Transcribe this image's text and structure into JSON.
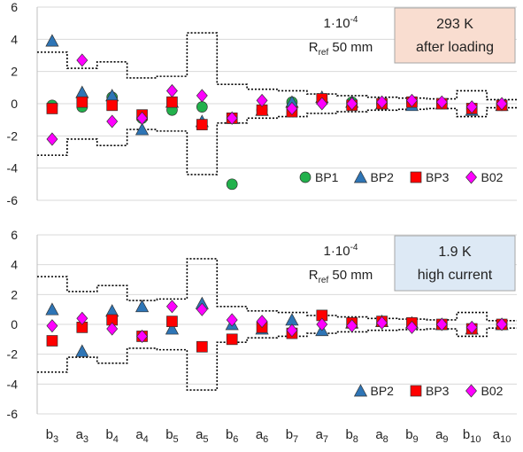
{
  "chart_data": [
    {
      "type": "scatter",
      "note_line1": "1·10",
      "note_exp": "-4",
      "note_line2_prefix": "R",
      "note_line2_sub": "ref",
      "note_line2_suffix": " 50 mm",
      "label_line1": "293 K",
      "label_line2": "after loading",
      "label_color": "#f9ddd0",
      "ylim": [
        -6,
        6
      ],
      "yticks": [
        6,
        4,
        2,
        0,
        -2,
        -4,
        -6
      ],
      "grid": true,
      "legend_placement": "bottom-right",
      "categories": [
        "b3",
        "a3",
        "b4",
        "a4",
        "b5",
        "a5",
        "b6",
        "a6",
        "b7",
        "a7",
        "b8",
        "a8",
        "b9",
        "a9",
        "b10",
        "a10"
      ],
      "series": [
        {
          "name": "BP1",
          "marker": "circle",
          "color": "#22b14c",
          "values": [
            -0.1,
            -0.2,
            0.4,
            -0.9,
            -0.4,
            -0.2,
            -5.0,
            -0.4,
            0.1,
            0.3,
            0.1,
            0.0,
            0.1,
            0.0,
            -0.3,
            -0.1
          ]
        },
        {
          "name": "BP2",
          "marker": "triangle",
          "color": "#2e75b6",
          "values": [
            3.9,
            0.7,
            0.5,
            -1.6,
            0.1,
            -1.1,
            -0.9,
            -0.4,
            0.1,
            0.4,
            0.1,
            0.0,
            -0.1,
            0.0,
            -0.4,
            -0.1
          ]
        },
        {
          "name": "BP3",
          "marker": "square",
          "color": "#ff0000",
          "values": [
            -0.3,
            0.1,
            -0.1,
            -0.7,
            0.1,
            -1.3,
            -0.9,
            -0.4,
            -0.5,
            0.3,
            -0.1,
            0.0,
            0.1,
            0.0,
            -0.3,
            -0.1
          ]
        },
        {
          "name": "B02",
          "marker": "diamond",
          "color": "#ff00ff",
          "values": [
            -2.2,
            2.7,
            -1.1,
            -0.9,
            0.8,
            0.5,
            -0.9,
            0.2,
            -0.3,
            0.0,
            0.0,
            0.1,
            0.2,
            0.1,
            -0.2,
            0.0
          ]
        }
      ],
      "envelope_upper": [
        3.2,
        2.2,
        2.6,
        1.6,
        1.7,
        4.4,
        1.2,
        0.9,
        0.8,
        0.6,
        0.5,
        0.4,
        0.35,
        0.3,
        0.8,
        0.25
      ],
      "envelope_lower": [
        -3.2,
        -2.2,
        -2.6,
        -1.6,
        -1.7,
        -4.4,
        -1.2,
        -0.9,
        -0.8,
        -0.6,
        -0.5,
        -0.4,
        -0.35,
        -0.3,
        -0.8,
        -0.25
      ]
    },
    {
      "type": "scatter",
      "note_line1": "1·10",
      "note_exp": "-4",
      "note_line2_prefix": "R",
      "note_line2_sub": "ref",
      "note_line2_suffix": " 50 mm",
      "label_line1": "1.9 K",
      "label_line2": "high current",
      "label_color": "#dde9f5",
      "ylim": [
        -6,
        6
      ],
      "yticks": [
        6,
        4,
        2,
        0,
        -2,
        -4,
        -6
      ],
      "grid": true,
      "legend_placement": "bottom-right",
      "categories": [
        "b3",
        "a3",
        "b4",
        "a4",
        "b5",
        "a5",
        "b6",
        "a6",
        "b7",
        "a7",
        "b8",
        "a8",
        "b9",
        "a9",
        "b10",
        "a10"
      ],
      "series": [
        {
          "name": "BP2",
          "marker": "triangle",
          "color": "#2e75b6",
          "values": [
            1.0,
            -1.8,
            0.9,
            1.2,
            -0.3,
            1.4,
            0.0,
            -0.3,
            0.3,
            -0.4,
            0.1,
            0.2,
            0.1,
            0.0,
            -0.3,
            0.0
          ]
        },
        {
          "name": "BP3",
          "marker": "square",
          "color": "#ff0000",
          "values": [
            -1.1,
            -0.2,
            0.3,
            -0.8,
            0.2,
            -1.5,
            -1.0,
            -0.2,
            -0.6,
            0.6,
            0.1,
            0.2,
            0.1,
            0.0,
            -0.3,
            0.0
          ]
        },
        {
          "name": "B02",
          "marker": "diamond",
          "color": "#ff00ff",
          "values": [
            -0.1,
            0.4,
            -0.3,
            -0.8,
            1.2,
            1.0,
            0.3,
            0.2,
            -0.4,
            0.0,
            -0.1,
            0.1,
            -0.2,
            0.0,
            -0.2,
            0.0
          ]
        }
      ],
      "envelope_upper": [
        3.2,
        2.2,
        2.6,
        1.6,
        1.7,
        4.4,
        1.2,
        0.9,
        0.8,
        0.6,
        0.5,
        0.4,
        0.35,
        0.3,
        0.8,
        0.25
      ],
      "envelope_lower": [
        -3.2,
        -2.2,
        -2.6,
        -1.6,
        -1.7,
        -4.4,
        -1.2,
        -0.9,
        -0.8,
        -0.6,
        -0.5,
        -0.4,
        -0.35,
        -0.3,
        -0.8,
        -0.25
      ]
    }
  ],
  "x_tick_labels": [
    {
      "base": "b",
      "sub": "3"
    },
    {
      "base": "a",
      "sub": "3"
    },
    {
      "base": "b",
      "sub": "4"
    },
    {
      "base": "a",
      "sub": "4"
    },
    {
      "base": "b",
      "sub": "5"
    },
    {
      "base": "a",
      "sub": "5"
    },
    {
      "base": "b",
      "sub": "6"
    },
    {
      "base": "a",
      "sub": "6"
    },
    {
      "base": "b",
      "sub": "7"
    },
    {
      "base": "a",
      "sub": "7"
    },
    {
      "base": "b",
      "sub": "8"
    },
    {
      "base": "a",
      "sub": "8"
    },
    {
      "base": "b",
      "sub": "9"
    },
    {
      "base": "a",
      "sub": "9"
    },
    {
      "base": "b",
      "sub": "10"
    },
    {
      "base": "a",
      "sub": "10"
    }
  ]
}
